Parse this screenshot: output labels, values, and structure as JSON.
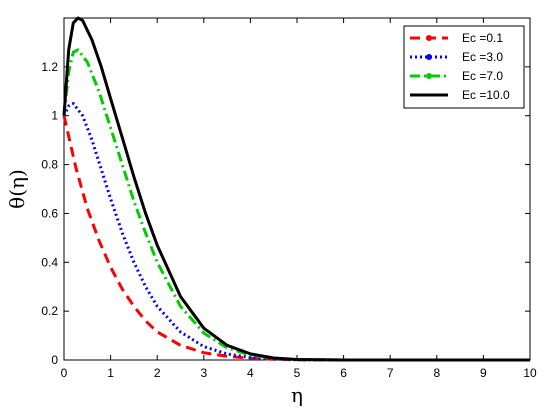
{
  "chart_data": {
    "type": "line",
    "title": "",
    "xlabel": "η",
    "ylabel": "θ(η)",
    "xlim": [
      0,
      10
    ],
    "ylim": [
      0,
      1.4
    ],
    "xticks": [
      "0",
      "1",
      "2",
      "3",
      "4",
      "5",
      "6",
      "7",
      "8",
      "9",
      "10"
    ],
    "yticks": [
      "0",
      "0.2",
      "0.4",
      "0.6",
      "0.8",
      "1",
      "1.2"
    ],
    "grid": false,
    "legend_position": "top-right",
    "series": [
      {
        "name": "Ec =0.1",
        "color": "#ff0000",
        "style": "dashed",
        "x": [
          0,
          0.25,
          0.5,
          0.75,
          1,
          1.25,
          1.5,
          1.75,
          2,
          2.5,
          3,
          3.5,
          4,
          4.5,
          5,
          6,
          7,
          8,
          9,
          10
        ],
        "y": [
          1.0,
          0.79,
          0.62,
          0.49,
          0.38,
          0.29,
          0.22,
          0.16,
          0.115,
          0.06,
          0.03,
          0.015,
          0.007,
          0.003,
          0.001,
          0,
          0,
          0,
          0,
          0
        ]
      },
      {
        "name": "Ec =3.0",
        "color": "#0000ff",
        "style": "dotted",
        "x": [
          0,
          0.1,
          0.2,
          0.4,
          0.6,
          0.8,
          1,
          1.25,
          1.5,
          1.75,
          2,
          2.5,
          3,
          3.5,
          4,
          4.5,
          5,
          6,
          7,
          8,
          9,
          10
        ],
        "y": [
          1.0,
          1.04,
          1.05,
          1.0,
          0.9,
          0.78,
          0.66,
          0.52,
          0.4,
          0.3,
          0.22,
          0.115,
          0.055,
          0.025,
          0.01,
          0.004,
          0.001,
          0,
          0,
          0,
          0,
          0
        ]
      },
      {
        "name": "Ec =7.0",
        "color": "#00cc00",
        "style": "dashdot",
        "x": [
          0,
          0.1,
          0.2,
          0.3,
          0.5,
          0.75,
          1,
          1.25,
          1.5,
          1.75,
          2,
          2.5,
          3,
          3.5,
          4,
          4.5,
          5,
          6,
          7,
          8,
          9,
          10
        ],
        "y": [
          1.0,
          1.18,
          1.26,
          1.27,
          1.22,
          1.1,
          0.95,
          0.8,
          0.65,
          0.52,
          0.4,
          0.22,
          0.11,
          0.05,
          0.02,
          0.007,
          0.002,
          0,
          0,
          0,
          0,
          0
        ]
      },
      {
        "name": "Ec =10.0",
        "color": "#000000",
        "style": "solid",
        "x": [
          0,
          0.1,
          0.2,
          0.3,
          0.4,
          0.6,
          0.8,
          1,
          1.25,
          1.5,
          1.75,
          2,
          2.5,
          3,
          3.5,
          4,
          4.5,
          5,
          6,
          7,
          8,
          9,
          10
        ],
        "y": [
          1.0,
          1.27,
          1.38,
          1.4,
          1.39,
          1.31,
          1.2,
          1.07,
          0.91,
          0.75,
          0.6,
          0.47,
          0.26,
          0.13,
          0.06,
          0.025,
          0.008,
          0.002,
          0,
          0,
          0,
          0,
          0
        ]
      }
    ]
  }
}
